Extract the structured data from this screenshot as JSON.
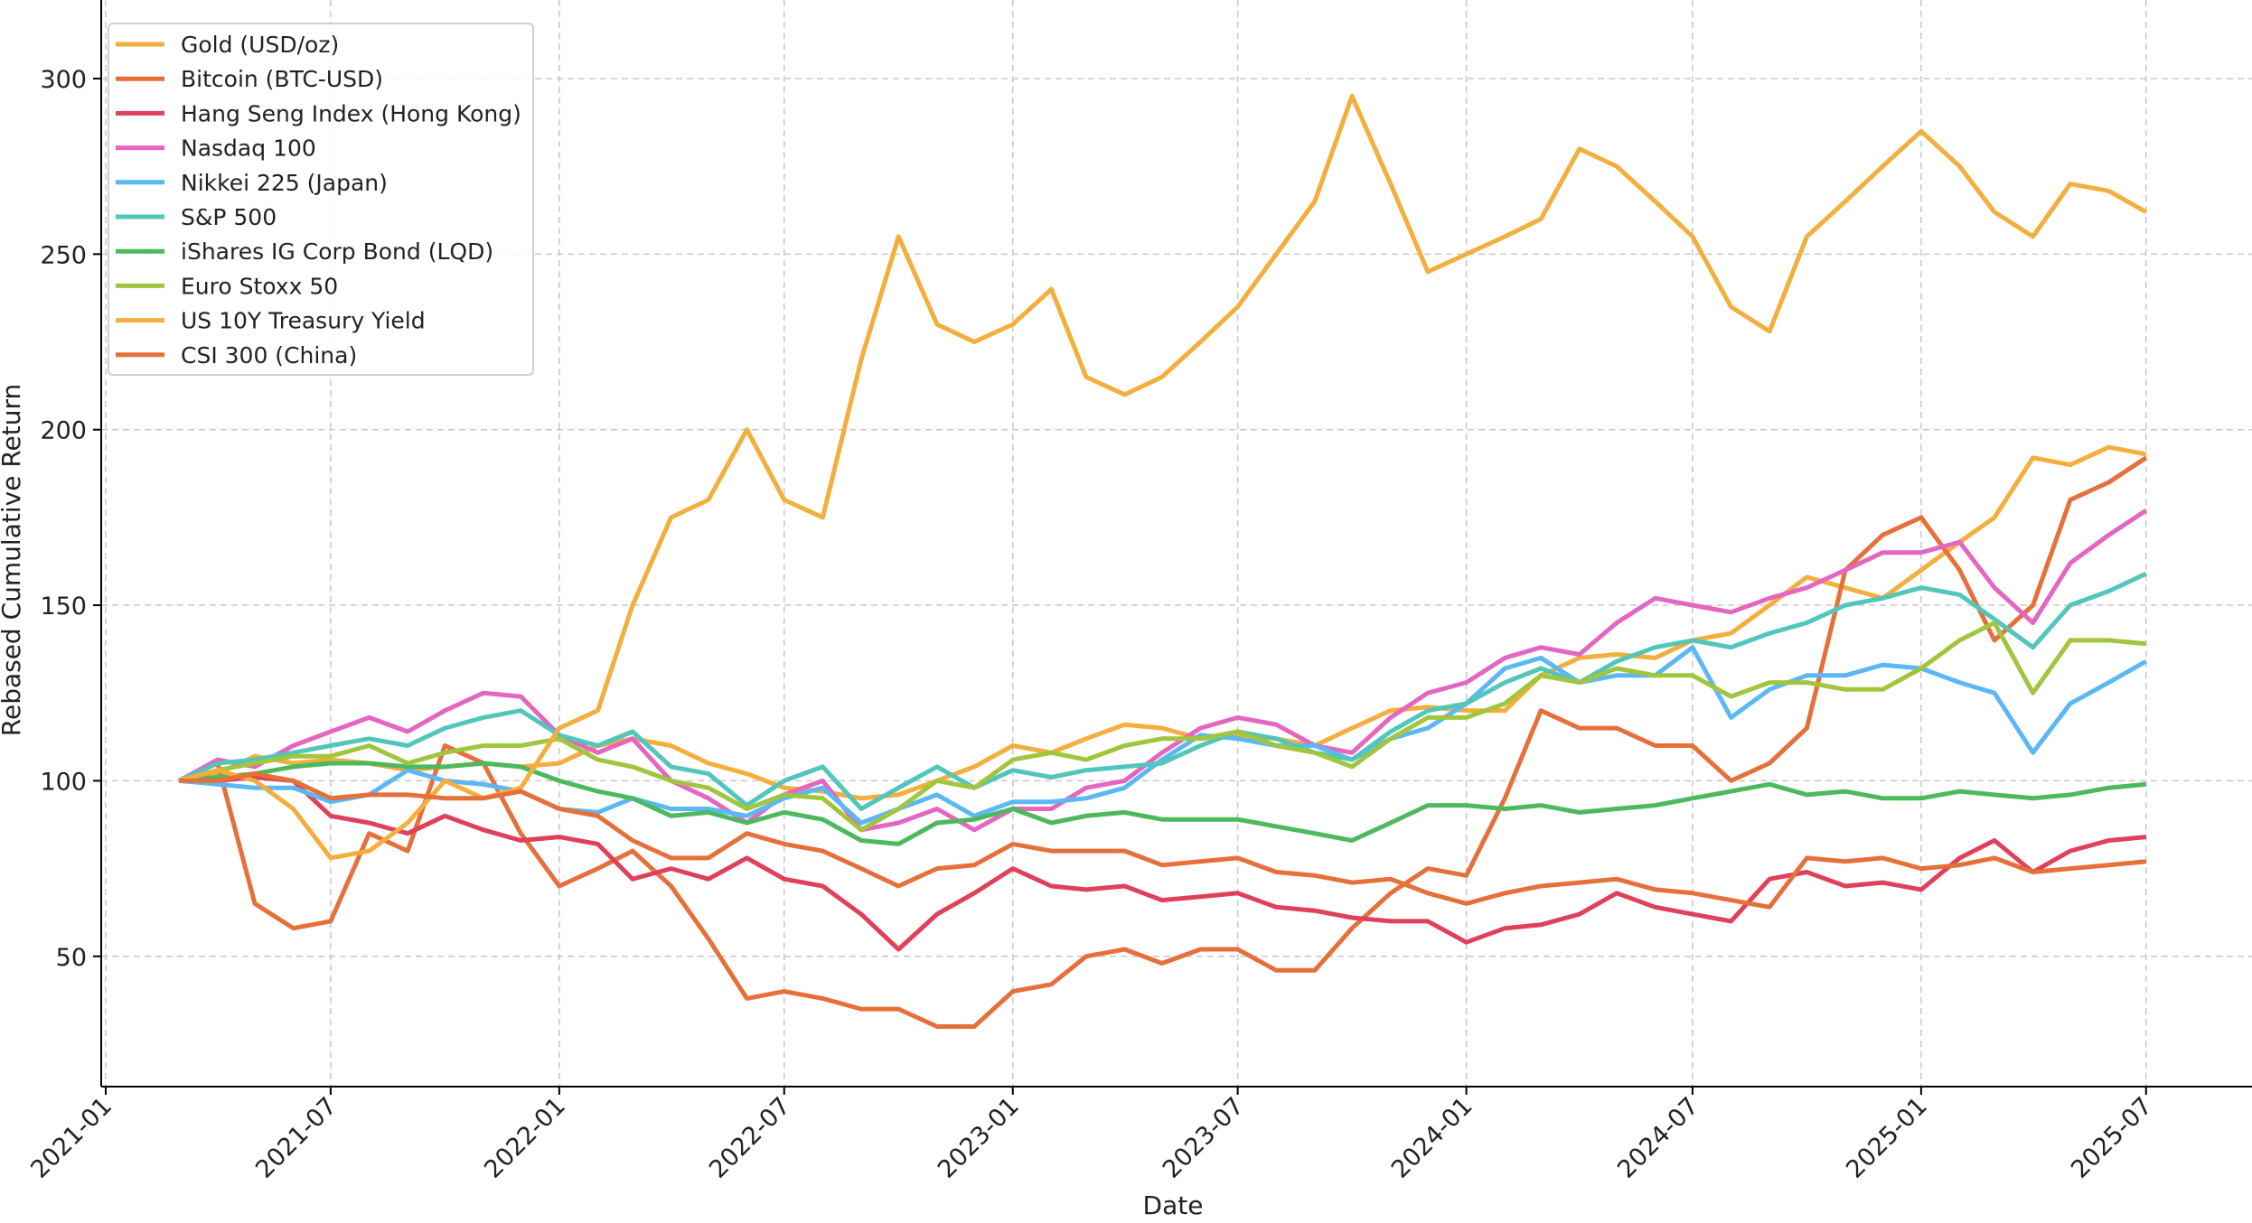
{
  "chart_data": {
    "type": "line",
    "title": "",
    "xlabel": "Date",
    "ylabel": "Rebased Cumulative Return",
    "ylim": [
      13,
      322
    ],
    "xlim": [
      "2020-12-20",
      "2025-08-20"
    ],
    "grid": true,
    "legend_position": "top-left",
    "x_ticks": [
      "2021-01",
      "2021-07",
      "2022-01",
      "2022-07",
      "2023-01",
      "2023-07",
      "2024-01",
      "2024-07",
      "2025-01",
      "2025-07"
    ],
    "y_ticks": [
      50,
      100,
      150,
      200,
      250,
      300
    ],
    "x": [
      "2021-03",
      "2021-04",
      "2021-05",
      "2021-06",
      "2021-07",
      "2021-08",
      "2021-09",
      "2021-10",
      "2021-11",
      "2021-12",
      "2022-01",
      "2022-02",
      "2022-03",
      "2022-04",
      "2022-05",
      "2022-06",
      "2022-07",
      "2022-08",
      "2022-09",
      "2022-10",
      "2022-11",
      "2022-12",
      "2023-01",
      "2023-02",
      "2023-03",
      "2023-04",
      "2023-05",
      "2023-06",
      "2023-07",
      "2023-08",
      "2023-09",
      "2023-10",
      "2023-11",
      "2023-12",
      "2024-01",
      "2024-02",
      "2024-03",
      "2024-04",
      "2024-05",
      "2024-06",
      "2024-07",
      "2024-08",
      "2024-09",
      "2024-10",
      "2024-11",
      "2024-12",
      "2025-01",
      "2025-02",
      "2025-03",
      "2025-04",
      "2025-05",
      "2025-06",
      "2025-07"
    ],
    "series": [
      {
        "name": "Gold (USD/oz)",
        "color": "#F4AE3D",
        "values": [
          100,
          102,
          107,
          105,
          106,
          105,
          103,
          104,
          105,
          104,
          105,
          110,
          112,
          110,
          105,
          102,
          98,
          97,
          95,
          96,
          100,
          104,
          110,
          108,
          112,
          116,
          115,
          112,
          113,
          112,
          110,
          115,
          120,
          121,
          120,
          120,
          130,
          135,
          136,
          135,
          140,
          142,
          150,
          158,
          155,
          152,
          160,
          168,
          175,
          192,
          190,
          195,
          193
        ]
      },
      {
        "name": "Bitcoin (BTC-USD)",
        "color": "#E6703A",
        "values": [
          100,
          105,
          65,
          58,
          60,
          85,
          80,
          110,
          105,
          85,
          70,
          75,
          80,
          70,
          55,
          38,
          40,
          38,
          35,
          35,
          30,
          30,
          40,
          42,
          50,
          52,
          48,
          52,
          52,
          46,
          46,
          58,
          68,
          75,
          73,
          95,
          120,
          115,
          115,
          110,
          110,
          100,
          105,
          115,
          160,
          170,
          175,
          160,
          140,
          150,
          180,
          185,
          192
        ]
      },
      {
        "name": "Hang Seng Index (Hong Kong)",
        "color": "#E0405A",
        "values": [
          100,
          100,
          101,
          100,
          90,
          88,
          85,
          90,
          86,
          83,
          84,
          82,
          72,
          75,
          72,
          78,
          72,
          70,
          62,
          52,
          62,
          68,
          75,
          70,
          69,
          70,
          66,
          67,
          68,
          64,
          63,
          61,
          60,
          60,
          54,
          58,
          59,
          62,
          68,
          64,
          62,
          60,
          72,
          74,
          70,
          71,
          69,
          78,
          83,
          74,
          80,
          83,
          84
        ]
      },
      {
        "name": "Nasdaq 100",
        "color": "#E466C0",
        "values": [
          100,
          106,
          104,
          110,
          114,
          118,
          114,
          120,
          125,
          124,
          113,
          108,
          112,
          100,
          95,
          88,
          96,
          100,
          86,
          88,
          92,
          86,
          92,
          92,
          98,
          100,
          108,
          115,
          118,
          116,
          110,
          108,
          118,
          125,
          128,
          135,
          138,
          136,
          145,
          152,
          150,
          148,
          152,
          155,
          160,
          165,
          165,
          168,
          155,
          145,
          162,
          170,
          177
        ]
      },
      {
        "name": "Nikkei 225 (Japan)",
        "color": "#5BB8F5",
        "values": [
          100,
          99,
          98,
          98,
          94,
          96,
          103,
          100,
          99,
          97,
          92,
          91,
          95,
          92,
          92,
          90,
          95,
          98,
          88,
          92,
          96,
          90,
          94,
          94,
          95,
          98,
          106,
          113,
          112,
          110,
          110,
          106,
          112,
          115,
          122,
          132,
          135,
          128,
          130,
          130,
          138,
          118,
          126,
          130,
          130,
          133,
          132,
          128,
          125,
          108,
          122,
          128,
          134
        ]
      },
      {
        "name": "S&P 500",
        "color": "#52C6BA",
        "values": [
          100,
          105,
          106,
          108,
          110,
          112,
          110,
          115,
          118,
          120,
          113,
          110,
          114,
          104,
          102,
          93,
          100,
          104,
          92,
          98,
          104,
          98,
          103,
          101,
          103,
          104,
          105,
          110,
          114,
          112,
          108,
          106,
          114,
          120,
          122,
          128,
          132,
          128,
          134,
          138,
          140,
          138,
          142,
          145,
          150,
          152,
          155,
          153,
          146,
          138,
          150,
          154,
          159
        ]
      },
      {
        "name": "iShares IG Corp Bond (LQD)",
        "color": "#4CBA5C",
        "values": [
          100,
          101,
          102,
          104,
          105,
          105,
          104,
          104,
          105,
          104,
          100,
          97,
          95,
          90,
          91,
          88,
          91,
          89,
          83,
          82,
          88,
          89,
          92,
          88,
          90,
          91,
          89,
          89,
          89,
          87,
          85,
          83,
          88,
          93,
          93,
          92,
          93,
          91,
          92,
          93,
          95,
          97,
          99,
          96,
          97,
          95,
          95,
          97,
          96,
          95,
          96,
          98,
          99
        ]
      },
      {
        "name": "Euro Stoxx 50",
        "color": "#A2C53E",
        "values": [
          100,
          103,
          105,
          107,
          107,
          110,
          105,
          108,
          110,
          110,
          112,
          106,
          104,
          100,
          98,
          92,
          96,
          95,
          86,
          92,
          100,
          98,
          106,
          108,
          106,
          110,
          112,
          112,
          114,
          110,
          108,
          104,
          112,
          118,
          118,
          122,
          130,
          128,
          132,
          130,
          130,
          124,
          128,
          128,
          126,
          126,
          132,
          140,
          145,
          125,
          140,
          140,
          139
        ]
      },
      {
        "name": "US 10Y Treasury Yield",
        "color": "#F4AE3D",
        "values": [
          100,
          103,
          100,
          92,
          78,
          80,
          88,
          100,
          95,
          98,
          115,
          120,
          150,
          175,
          180,
          200,
          180,
          175,
          220,
          255,
          230,
          225,
          230,
          240,
          215,
          210,
          215,
          225,
          235,
          250,
          265,
          295,
          270,
          245,
          250,
          255,
          260,
          280,
          275,
          265,
          255,
          235,
          228,
          255,
          265,
          275,
          285,
          275,
          262,
          255,
          270,
          268,
          262
        ]
      },
      {
        "name": "CSI 300 (China)",
        "color": "#E6703A",
        "values": [
          100,
          100,
          102,
          100,
          95,
          96,
          96,
          95,
          95,
          97,
          92,
          90,
          83,
          78,
          78,
          85,
          82,
          80,
          75,
          70,
          75,
          76,
          82,
          80,
          80,
          80,
          76,
          77,
          78,
          74,
          73,
          71,
          72,
          68,
          65,
          68,
          70,
          71,
          72,
          69,
          68,
          66,
          64,
          78,
          77,
          78,
          75,
          76,
          78,
          74,
          75,
          76,
          77
        ]
      }
    ]
  }
}
